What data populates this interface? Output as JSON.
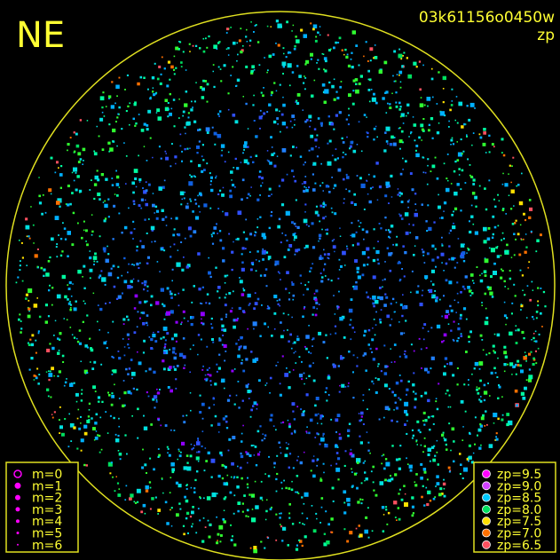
{
  "header": {
    "corner": "NE",
    "image_id": "03k61156o0450w",
    "quantity": "zp"
  },
  "legend_magnitude": {
    "items": [
      "m=0",
      "m=1",
      "m=2",
      "m=3",
      "m=4",
      "m=5",
      "m=6"
    ],
    "color": "#ff00ff"
  },
  "legend_zp": {
    "items": [
      {
        "label": "zp=9.5",
        "color": "#ff00ff"
      },
      {
        "label": "zp=9.0",
        "color": "#d040ff"
      },
      {
        "label": "zp=8.5",
        "color": "#00c8ff"
      },
      {
        "label": "zp=8.0",
        "color": "#00e060"
      },
      {
        "label": "zp=7.5",
        "color": "#ffe000"
      },
      {
        "label": "zp=7.0",
        "color": "#ff7000"
      },
      {
        "label": "zp=6.5",
        "color": "#ff5060"
      }
    ]
  }
}
